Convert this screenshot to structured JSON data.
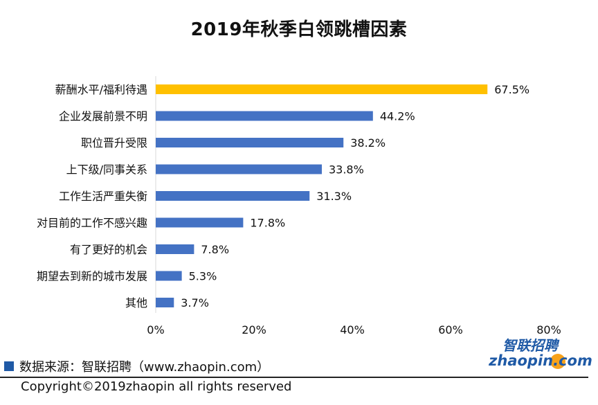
{
  "chart_data": {
    "type": "bar",
    "orientation": "horizontal",
    "title": "2019年秋季白领跳槽因素",
    "categories": [
      "薪酬水平/福利待遇",
      "企业发展前景不明",
      "职位晋升受限",
      "上下级/同事关系",
      "工作生活严重失衡",
      "对目前的工作不感兴趣",
      "有了更好的机会",
      "期望去到新的城市发展",
      "其他"
    ],
    "values": [
      67.5,
      44.2,
      38.2,
      33.8,
      31.3,
      17.8,
      7.8,
      5.3,
      3.7
    ],
    "value_labels": [
      "67.5%",
      "44.2%",
      "38.2%",
      "33.8%",
      "31.3%",
      "17.8%",
      "7.8%",
      "5.3%",
      "3.7%"
    ],
    "xlim": [
      0,
      80
    ],
    "ticks": [
      0,
      20,
      40,
      60,
      80
    ],
    "tick_labels": [
      "0%",
      "20%",
      "40%",
      "60%",
      "80%"
    ],
    "highlight_index": 0,
    "highlight_color": "#ffc000",
    "bar_color": "#4472c4",
    "grid": false
  },
  "source": "数据来源：智联招聘（www.zhaopin.com）",
  "copyright": "Copyright©2019zhaopin all rights reserved",
  "logo": {
    "cn_text": "智联招聘",
    "en_text": "zhaopin.com"
  }
}
